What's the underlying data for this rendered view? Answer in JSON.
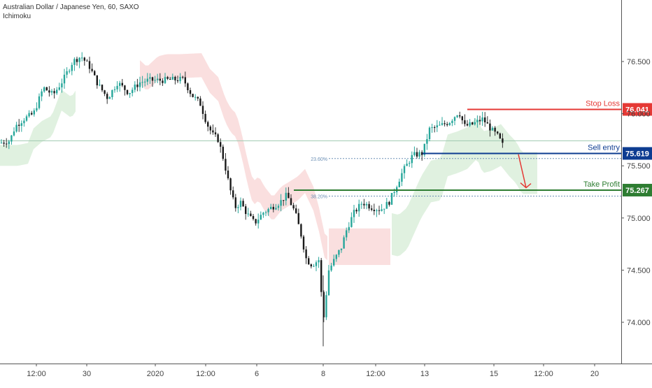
{
  "header": {
    "title": "Australian Dollar / Japanese Yen, 60, SAXO",
    "indicator": "Ichimoku"
  },
  "colors": {
    "up": "#26a69a",
    "down": "#333333",
    "candle_body": "#1a1a1a",
    "cloud_bull": "#d5ecd5",
    "cloud_bear": "#f8d4d4",
    "stop_loss": "#e53935",
    "sell_entry": "#0d3c91",
    "take_profit": "#2e7d32",
    "fib": "#6b8fb5",
    "axis_text": "#444444"
  },
  "chart_data": {
    "type": "candlestick",
    "y_axis": {
      "min": 73.7,
      "max": 76.85,
      "ticks": [
        "76.500",
        "76.000",
        "75.500",
        "75.000",
        "74.500",
        "74.000"
      ]
    },
    "x_axis": {
      "ticks": [
        "12:00",
        "30",
        "2020",
        "12:00",
        "6",
        "8",
        "12:00",
        "13",
        "15",
        "12:00",
        "20"
      ]
    },
    "levels": [
      {
        "id": "stop_loss",
        "name": "Stop Loss",
        "value": 76.041,
        "label": "76.041"
      },
      {
        "id": "sell_entry",
        "name": "Sell entry",
        "value": 75.619,
        "label": "75.619"
      },
      {
        "id": "take_profit",
        "name": "Take Profit",
        "value": 75.267,
        "label": "75.267"
      }
    ],
    "fib_levels": [
      {
        "label": "23.60%",
        "value": 75.57
      },
      {
        "label": "38.20%",
        "value": 75.21
      }
    ],
    "baseline": 75.74,
    "price_path": [
      [
        0,
        75.72
      ],
      [
        14,
        75.74
      ],
      [
        22,
        75.88
      ],
      [
        34,
        75.95
      ],
      [
        48,
        76.0
      ],
      [
        62,
        76.25
      ],
      [
        76,
        76.18
      ],
      [
        90,
        76.32
      ],
      [
        104,
        76.5
      ],
      [
        116,
        76.55
      ],
      [
        128,
        76.45
      ],
      [
        140,
        76.28
      ],
      [
        154,
        76.15
      ],
      [
        168,
        76.3
      ],
      [
        184,
        76.2
      ],
      [
        200,
        76.3
      ],
      [
        212,
        76.32
      ],
      [
        230,
        76.32
      ],
      [
        262,
        76.33
      ],
      [
        274,
        76.18
      ],
      [
        286,
        76.1
      ],
      [
        296,
        75.9
      ],
      [
        304,
        75.8
      ],
      [
        312,
        75.75
      ],
      [
        320,
        75.55
      ],
      [
        328,
        75.3
      ],
      [
        336,
        75.1
      ],
      [
        344,
        75.15
      ],
      [
        352,
        75.05
      ],
      [
        364,
        74.95
      ],
      [
        376,
        75.05
      ],
      [
        388,
        75.1
      ],
      [
        400,
        75.15
      ],
      [
        410,
        75.22
      ],
      [
        422,
        75.05
      ],
      [
        430,
        74.85
      ],
      [
        438,
        74.6
      ],
      [
        446,
        74.55
      ],
      [
        456,
        74.6
      ],
      [
        462,
        74.0
      ],
      [
        470,
        74.5
      ],
      [
        478,
        74.6
      ],
      [
        488,
        74.72
      ],
      [
        496,
        74.9
      ],
      [
        506,
        75.05
      ],
      [
        518,
        75.15
      ],
      [
        532,
        75.1
      ],
      [
        544,
        75.08
      ],
      [
        556,
        75.15
      ],
      [
        566,
        75.3
      ],
      [
        576,
        75.45
      ],
      [
        590,
        75.6
      ],
      [
        604,
        75.62
      ],
      [
        614,
        75.85
      ],
      [
        628,
        75.88
      ],
      [
        642,
        75.92
      ],
      [
        656,
        76.02
      ],
      [
        664,
        75.88
      ],
      [
        676,
        75.9
      ],
      [
        690,
        75.95
      ],
      [
        702,
        75.85
      ],
      [
        712,
        75.78
      ],
      [
        720,
        75.68
      ]
    ],
    "annotation_arrow": {
      "from": [
        741,
        75.61
      ],
      "to": [
        752,
        75.29
      ]
    }
  }
}
